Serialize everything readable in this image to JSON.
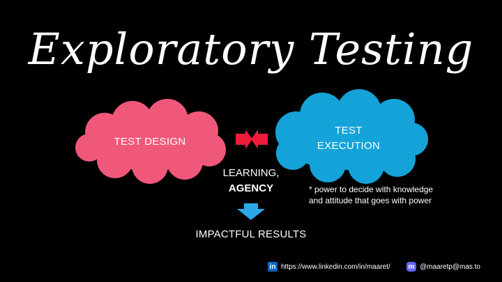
{
  "title": "Exploratory Testing",
  "nodes": {
    "design": "TEST DESIGN",
    "execution_line1": "TEST",
    "execution_line2": "EXECUTION"
  },
  "learning": {
    "line1": "LEARNING,",
    "line2": "AGENCY"
  },
  "note": {
    "line1": "* power to decide with knowledge",
    "line2": "and attitude that goes with power"
  },
  "result": "IMPACTFUL RESULTS",
  "footer": {
    "linkedin_url": "https://www.linkedin.com/in/maaret/",
    "mastodon_handle": "@maaretp@mas.to",
    "linkedin_icon": "linkedin-icon",
    "mastodon_icon": "mastodon-icon"
  },
  "colors": {
    "design_cloud": "#f0587a",
    "execution_cloud": "#14a3d8",
    "arrow_red": "#ee1c3b",
    "arrow_blue": "#2aa9e6"
  }
}
